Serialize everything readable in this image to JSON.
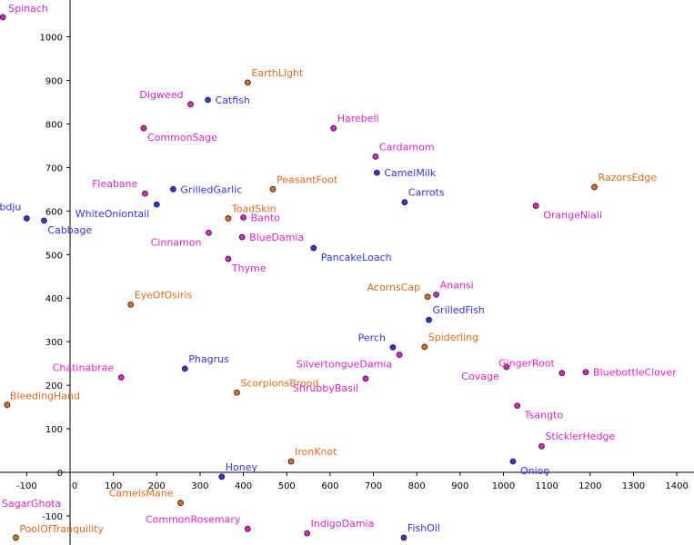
{
  "chart_data": {
    "type": "scatter",
    "title": "",
    "xlabel": "",
    "ylabel": "",
    "xlim": [
      -160,
      1430
    ],
    "ylim": [
      -160,
      1070
    ],
    "grid": false,
    "legend": "none",
    "x_ticks": [
      -100,
      0,
      100,
      200,
      300,
      400,
      500,
      600,
      700,
      800,
      900,
      1000,
      1100,
      1200,
      1300,
      1400
    ],
    "y_ticks": [
      -100,
      0,
      100,
      200,
      300,
      400,
      500,
      600,
      700,
      800,
      900,
      1000
    ],
    "x_tick_labels": [
      "-100",
      "0",
      "100",
      "200",
      "300",
      "400",
      "500",
      "600",
      "700",
      "800",
      "900",
      "1000",
      "1100",
      "1200",
      "1300",
      "1400"
    ],
    "y_tick_labels": [
      "-100",
      "0",
      "100",
      "200",
      "300",
      "400",
      "500",
      "600",
      "700",
      "800",
      "900",
      "1000"
    ],
    "colors": {
      "blue": "#3333dd",
      "orange": "#e06a1e",
      "magenta": "#dd22cc"
    },
    "points": [
      {
        "label": "Spinach",
        "x": -155,
        "y": 1045,
        "color": "magenta"
      },
      {
        "label": "EarthLight",
        "x": 410,
        "y": 895,
        "color": "orange"
      },
      {
        "label": "Digweed",
        "x": 278,
        "y": 845,
        "color": "magenta"
      },
      {
        "label": "Catfish",
        "x": 318,
        "y": 855,
        "color": "blue"
      },
      {
        "label": "CommonSage",
        "x": 170,
        "y": 790,
        "color": "magenta"
      },
      {
        "label": "Harebell",
        "x": 608,
        "y": 790,
        "color": "magenta"
      },
      {
        "label": "Cardamom",
        "x": 705,
        "y": 725,
        "color": "magenta"
      },
      {
        "label": "CamelMilk",
        "x": 708,
        "y": 688,
        "color": "blue"
      },
      {
        "label": "RazorsEdge",
        "x": 1210,
        "y": 655,
        "color": "orange"
      },
      {
        "label": "Fleabane",
        "x": 173,
        "y": 640,
        "color": "magenta"
      },
      {
        "label": "GrilledGarlic",
        "x": 238,
        "y": 650,
        "color": "blue"
      },
      {
        "label": "PeasantFoot",
        "x": 468,
        "y": 650,
        "color": "orange"
      },
      {
        "label": "Carrots",
        "x": 772,
        "y": 620,
        "color": "blue"
      },
      {
        "label": "OrangeNiali",
        "x": 1075,
        "y": 612,
        "color": "magenta"
      },
      {
        "label": "WhiteOniontail",
        "x": 200,
        "y": 615,
        "color": "blue"
      },
      {
        "label": "Abdju",
        "x": -100,
        "y": 583,
        "color": "blue"
      },
      {
        "label": "Cabbage",
        "x": -60,
        "y": 578,
        "color": "blue"
      },
      {
        "label": "ToadSkin",
        "x": 365,
        "y": 583,
        "color": "orange"
      },
      {
        "label": "Banto",
        "x": 400,
        "y": 585,
        "color": "magenta"
      },
      {
        "label": "Cinnamon",
        "x": 320,
        "y": 550,
        "color": "magenta"
      },
      {
        "label": "BlueDamia",
        "x": 397,
        "y": 540,
        "color": "magenta"
      },
      {
        "label": "PancakeLoach",
        "x": 562,
        "y": 515,
        "color": "blue"
      },
      {
        "label": "Thyme",
        "x": 365,
        "y": 490,
        "color": "magenta"
      },
      {
        "label": "AcornsCap",
        "x": 825,
        "y": 403,
        "color": "orange"
      },
      {
        "label": "Anansi",
        "x": 845,
        "y": 408,
        "color": "magenta"
      },
      {
        "label": "EyeOfOsiris",
        "x": 140,
        "y": 385,
        "color": "orange"
      },
      {
        "label": "GrilledFish",
        "x": 828,
        "y": 350,
        "color": "blue"
      },
      {
        "label": "Perch",
        "x": 745,
        "y": 287,
        "color": "blue"
      },
      {
        "label": "Spiderling",
        "x": 818,
        "y": 288,
        "color": "orange"
      },
      {
        "label": "SilvertongueDamia",
        "x": 760,
        "y": 270,
        "color": "magenta"
      },
      {
        "label": "Phagrus",
        "x": 265,
        "y": 238,
        "color": "blue"
      },
      {
        "label": "Covage",
        "x": 1007,
        "y": 242,
        "color": "magenta"
      },
      {
        "label": "GingerRoot",
        "x": 1135,
        "y": 228,
        "color": "magenta"
      },
      {
        "label": "BluebottleClover",
        "x": 1190,
        "y": 230,
        "color": "magenta"
      },
      {
        "label": "Chatinabrae",
        "x": 118,
        "y": 218,
        "color": "magenta"
      },
      {
        "label": "ShrubbyBasil",
        "x": 682,
        "y": 215,
        "color": "magenta"
      },
      {
        "label": "ScorpionsBrood",
        "x": 385,
        "y": 183,
        "color": "orange"
      },
      {
        "label": "BleedingHand",
        "x": -145,
        "y": 155,
        "color": "orange"
      },
      {
        "label": "Tsangto",
        "x": 1032,
        "y": 153,
        "color": "magenta"
      },
      {
        "label": "SticklerHedge",
        "x": 1088,
        "y": 60,
        "color": "magenta"
      },
      {
        "label": "IronKnot",
        "x": 510,
        "y": 25,
        "color": "orange"
      },
      {
        "label": "Onion",
        "x": 1022,
        "y": 25,
        "color": "blue"
      },
      {
        "label": "Honey",
        "x": 350,
        "y": -10,
        "color": "blue"
      },
      {
        "label": "SagarGhota",
        "x": -170,
        "y": -90,
        "color": "magenta"
      },
      {
        "label": "CamelsMane",
        "x": 255,
        "y": -70,
        "color": "orange"
      },
      {
        "label": "CommonRosemary",
        "x": 410,
        "y": -130,
        "color": "magenta"
      },
      {
        "label": "IndigoDamia",
        "x": 547,
        "y": -140,
        "color": "magenta"
      },
      {
        "label": "PoolOfTranquility",
        "x": -125,
        "y": -150,
        "color": "orange"
      },
      {
        "label": "FishOil",
        "x": 770,
        "y": -150,
        "color": "blue"
      }
    ]
  }
}
